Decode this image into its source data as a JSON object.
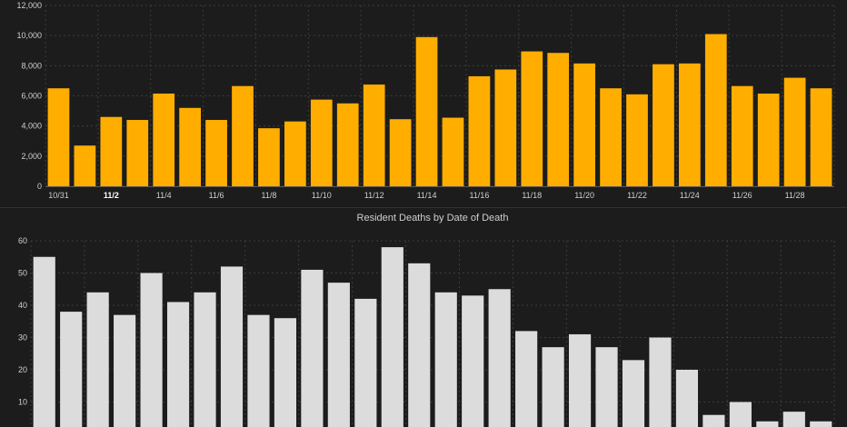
{
  "chart_data": [
    {
      "type": "bar",
      "title": "",
      "xlabel": "",
      "ylabel": "",
      "ylim": [
        0,
        12000
      ],
      "yticks": [
        0,
        2000,
        4000,
        6000,
        8000,
        10000,
        12000
      ],
      "ytick_labels": [
        "0",
        "2,000",
        "4,000",
        "6,000",
        "8,000",
        "10,000",
        "12,000"
      ],
      "categories": [
        "10/31",
        "11/1",
        "11/2",
        "11/3",
        "11/4",
        "11/5",
        "11/6",
        "11/7",
        "11/8",
        "11/9",
        "11/10",
        "11/11",
        "11/12",
        "11/13",
        "11/14",
        "11/15",
        "11/16",
        "11/17",
        "11/18",
        "11/19",
        "11/20",
        "11/21",
        "11/22",
        "11/23",
        "11/24",
        "11/25",
        "11/26",
        "11/27",
        "11/28",
        "11/29"
      ],
      "xtick_labels": [
        "10/31",
        "",
        "11/2",
        "",
        "11/4",
        "",
        "11/6",
        "",
        "11/8",
        "",
        "11/10",
        "",
        "11/12",
        "",
        "11/14",
        "",
        "11/16",
        "",
        "11/18",
        "",
        "11/20",
        "",
        "11/22",
        "",
        "11/24",
        "",
        "11/26",
        "",
        "11/28",
        ""
      ],
      "bold_tick": "11/2",
      "values": [
        6500,
        2700,
        4600,
        4400,
        6150,
        5200,
        4400,
        6650,
        3850,
        4300,
        5750,
        5500,
        6750,
        4450,
        9900,
        4550,
        7300,
        7750,
        8950,
        8850,
        8150,
        6500,
        6100,
        8100,
        8150,
        10100,
        6650,
        6150,
        7200,
        6500
      ],
      "color": "#ffae00",
      "grid": true
    },
    {
      "type": "bar",
      "title": "Resident Deaths by Date of Death",
      "xlabel": "",
      "ylabel": "",
      "ylim": [
        0,
        60
      ],
      "yticks": [
        10,
        20,
        30,
        40,
        50,
        60
      ],
      "ytick_labels": [
        "10",
        "20",
        "30",
        "40",
        "50",
        "60"
      ],
      "categories": [
        "10/31",
        "11/1",
        "11/2",
        "11/3",
        "11/4",
        "11/5",
        "11/6",
        "11/7",
        "11/8",
        "11/9",
        "11/10",
        "11/11",
        "11/12",
        "11/13",
        "11/14",
        "11/15",
        "11/16",
        "11/17",
        "11/18",
        "11/19",
        "11/20",
        "11/21",
        "11/22",
        "11/23",
        "11/24",
        "11/25",
        "11/26",
        "11/27",
        "11/28",
        "11/29"
      ],
      "values": [
        55,
        38,
        44,
        37,
        50,
        41,
        44,
        52,
        37,
        36,
        51,
        47,
        42,
        58,
        53,
        44,
        43,
        45,
        32,
        27,
        31,
        27,
        23,
        30,
        20,
        6,
        10,
        4,
        7,
        4
      ],
      "color": "#dcdcdc",
      "grid": true
    }
  ]
}
